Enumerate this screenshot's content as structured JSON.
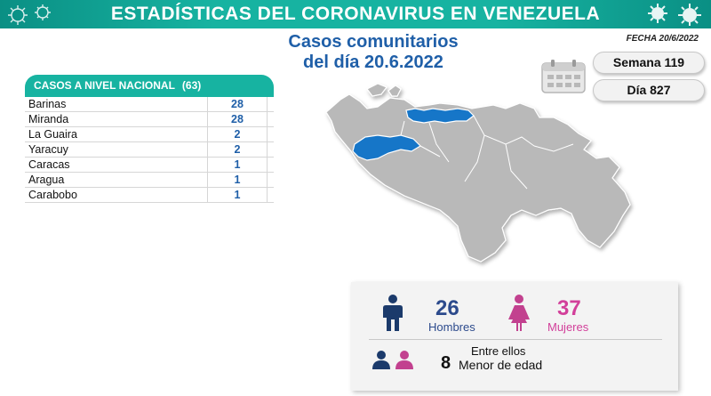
{
  "header": {
    "title": "ESTADÍSTICAS DEL CORONAVIRUS EN VENEZUELA"
  },
  "report": {
    "title_line1": "Casos comunitarios",
    "title_line2": "del día 20.6.2022",
    "fecha": "FECHA 20/6/2022",
    "semana": "Semana 119",
    "dia": "Día 827"
  },
  "national_table": {
    "heading": "CASOS A NIVEL NACIONAL",
    "total": "(63)",
    "rows": [
      {
        "state": "Barinas",
        "cases": "28"
      },
      {
        "state": "Miranda",
        "cases": "28"
      },
      {
        "state": "La Guaira",
        "cases": "2"
      },
      {
        "state": "Yaracuy",
        "cases": "2"
      },
      {
        "state": "Caracas",
        "cases": "1"
      },
      {
        "state": "Aragua",
        "cases": "1"
      },
      {
        "state": "Carabobo",
        "cases": "1"
      }
    ]
  },
  "gender": {
    "men_count": "26",
    "men_label": "Hombres",
    "women_count": "37",
    "women_label": "Mujeres",
    "entre_ellos": "Entre ellos",
    "minors_count": "8",
    "minors_label": "Menor de edad"
  },
  "colors": {
    "teal": "#17b3a1",
    "blue": "#1f5fa8",
    "navy": "#1b3a6b",
    "magenta": "#c2418f",
    "map_gray": "#b9b9b9",
    "map_highlight": "#1976c8"
  },
  "icons": [
    "virus-icon",
    "calendar-icon",
    "man-icon",
    "woman-icon",
    "child-icon"
  ]
}
